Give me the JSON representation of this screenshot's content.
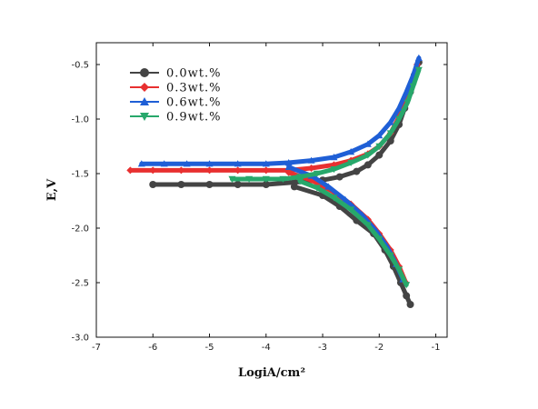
{
  "chart_data": {
    "type": "line",
    "title": "",
    "xlabel": "LogiA/cm²",
    "ylabel": "E,V",
    "xlim": [
      -7,
      -0.8
    ],
    "ylim": [
      -3.0,
      -0.3
    ],
    "xticks": [
      -7,
      -6,
      -5,
      -4,
      -3,
      -2,
      -1
    ],
    "yticks": [
      -0.5,
      -1.0,
      -1.5,
      -2.0,
      -2.5,
      -3.0
    ],
    "xtick_labels": [
      "-7",
      "-6",
      "-5",
      "-4",
      "-3",
      "-2",
      "-1"
    ],
    "ytick_labels": [
      "-0.5",
      "-1.0",
      "-1.5",
      "-2.0",
      "-2.5",
      "-3.0"
    ],
    "legend_position": "top-left",
    "grid": false,
    "series": [
      {
        "name": "0.0wt.%",
        "color": "#444444",
        "marker": "circle",
        "points": [
          [
            -6.0,
            -1.6
          ],
          [
            -5.5,
            -1.6
          ],
          [
            -5.0,
            -1.6
          ],
          [
            -4.5,
            -1.6
          ],
          [
            -4.0,
            -1.6
          ],
          [
            -3.5,
            -1.58
          ],
          [
            -3.0,
            -1.56
          ],
          [
            -2.7,
            -1.53
          ],
          [
            -2.4,
            -1.48
          ],
          [
            -2.2,
            -1.42
          ],
          [
            -2.0,
            -1.33
          ],
          [
            -1.8,
            -1.2
          ],
          [
            -1.65,
            -1.05
          ],
          [
            -1.55,
            -0.9
          ],
          [
            -1.45,
            -0.75
          ],
          [
            -1.38,
            -0.6
          ],
          [
            -1.3,
            -0.48
          ],
          [
            -3.5,
            -1.62
          ],
          [
            -3.0,
            -1.7
          ],
          [
            -2.7,
            -1.8
          ],
          [
            -2.4,
            -1.93
          ],
          [
            -2.1,
            -2.05
          ],
          [
            -1.9,
            -2.2
          ],
          [
            -1.75,
            -2.35
          ],
          [
            -1.62,
            -2.5
          ],
          [
            -1.52,
            -2.62
          ],
          [
            -1.45,
            -2.7
          ]
        ]
      },
      {
        "name": "0.3wt.%",
        "color": "#e83030",
        "marker": "diamond",
        "points": [
          [
            -6.4,
            -1.47
          ],
          [
            -6.0,
            -1.47
          ],
          [
            -5.5,
            -1.47
          ],
          [
            -5.0,
            -1.47
          ],
          [
            -4.5,
            -1.47
          ],
          [
            -4.0,
            -1.47
          ],
          [
            -3.6,
            -1.47
          ],
          [
            -3.2,
            -1.45
          ],
          [
            -2.8,
            -1.42
          ],
          [
            -2.5,
            -1.38
          ],
          [
            -2.2,
            -1.32
          ],
          [
            -2.0,
            -1.25
          ],
          [
            -1.8,
            -1.13
          ],
          [
            -1.65,
            -0.98
          ],
          [
            -1.52,
            -0.82
          ],
          [
            -1.42,
            -0.65
          ],
          [
            -1.33,
            -0.5
          ],
          [
            -3.6,
            -1.49
          ],
          [
            -3.2,
            -1.56
          ],
          [
            -2.8,
            -1.67
          ],
          [
            -2.5,
            -1.78
          ],
          [
            -2.2,
            -1.92
          ],
          [
            -2.0,
            -2.05
          ],
          [
            -1.8,
            -2.2
          ],
          [
            -1.65,
            -2.35
          ],
          [
            -1.53,
            -2.5
          ]
        ]
      },
      {
        "name": "0.6wt.%",
        "color": "#1f5fd6",
        "marker": "triangle-up",
        "points": [
          [
            -6.2,
            -1.41
          ],
          [
            -5.8,
            -1.41
          ],
          [
            -5.4,
            -1.41
          ],
          [
            -5.0,
            -1.41
          ],
          [
            -4.5,
            -1.41
          ],
          [
            -4.0,
            -1.41
          ],
          [
            -3.6,
            -1.4
          ],
          [
            -3.2,
            -1.38
          ],
          [
            -2.8,
            -1.35
          ],
          [
            -2.5,
            -1.3
          ],
          [
            -2.2,
            -1.23
          ],
          [
            -2.0,
            -1.15
          ],
          [
            -1.8,
            -1.03
          ],
          [
            -1.65,
            -0.9
          ],
          [
            -1.52,
            -0.75
          ],
          [
            -1.4,
            -0.6
          ],
          [
            -1.3,
            -0.44
          ],
          [
            -3.6,
            -1.44
          ],
          [
            -3.2,
            -1.52
          ],
          [
            -2.9,
            -1.62
          ],
          [
            -2.6,
            -1.74
          ],
          [
            -2.3,
            -1.88
          ],
          [
            -2.05,
            -2.03
          ],
          [
            -1.85,
            -2.18
          ],
          [
            -1.7,
            -2.33
          ],
          [
            -1.58,
            -2.47
          ]
        ]
      },
      {
        "name": "0.9wt.%",
        "color": "#27a86b",
        "marker": "triangle-down",
        "points": [
          [
            -4.6,
            -1.55
          ],
          [
            -4.3,
            -1.55
          ],
          [
            -4.0,
            -1.55
          ],
          [
            -3.7,
            -1.55
          ],
          [
            -3.4,
            -1.53
          ],
          [
            -3.1,
            -1.5
          ],
          [
            -2.8,
            -1.46
          ],
          [
            -2.5,
            -1.4
          ],
          [
            -2.2,
            -1.33
          ],
          [
            -2.0,
            -1.25
          ],
          [
            -1.8,
            -1.13
          ],
          [
            -1.65,
            -1.0
          ],
          [
            -1.5,
            -0.85
          ],
          [
            -1.4,
            -0.7
          ],
          [
            -1.3,
            -0.55
          ],
          [
            -3.4,
            -1.57
          ],
          [
            -3.1,
            -1.63
          ],
          [
            -2.8,
            -1.72
          ],
          [
            -2.5,
            -1.83
          ],
          [
            -2.2,
            -1.97
          ],
          [
            -2.0,
            -2.1
          ],
          [
            -1.8,
            -2.25
          ],
          [
            -1.65,
            -2.38
          ],
          [
            -1.52,
            -2.52
          ]
        ]
      }
    ]
  }
}
